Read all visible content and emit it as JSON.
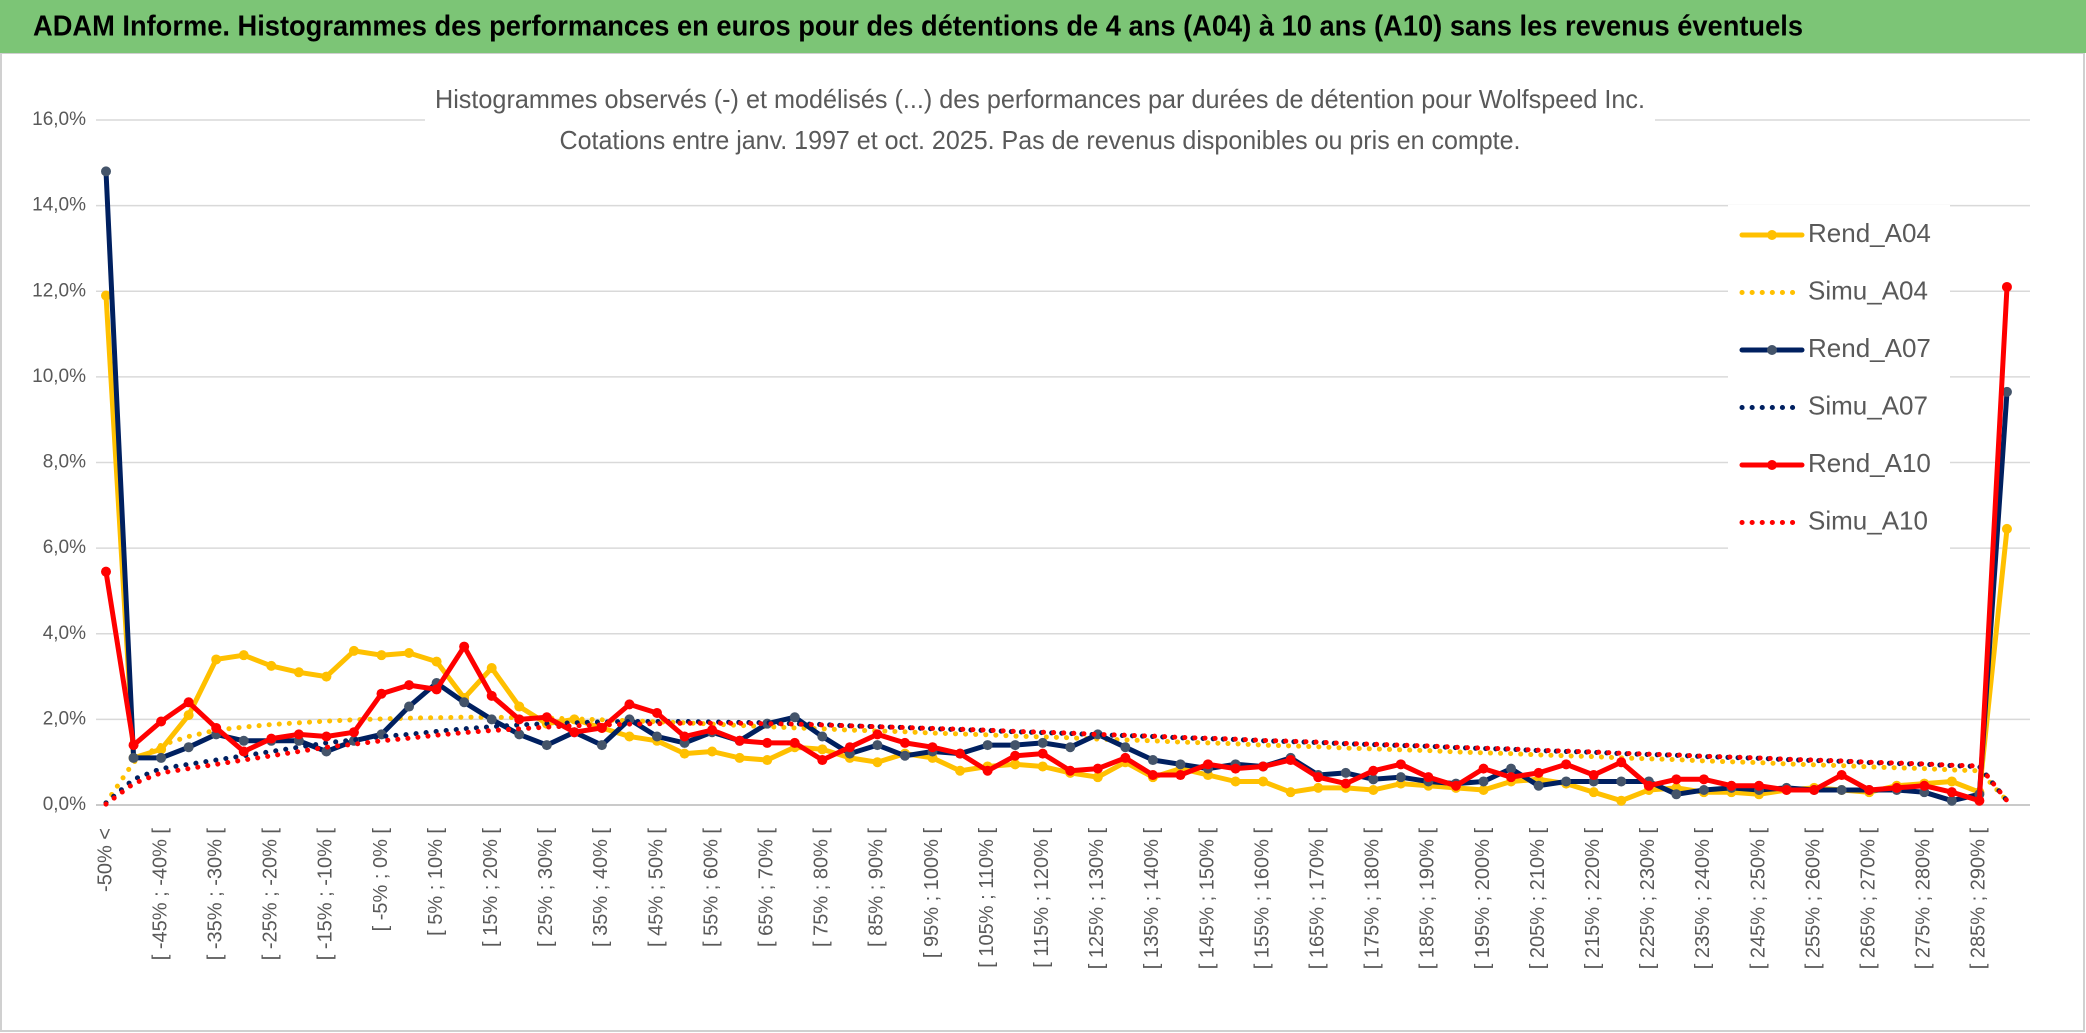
{
  "header": {
    "title": "ADAM Informe. Histogrammes des performances en euros pour des détentions de 4 ans (A04) à 10 ans (A10) sans les revenus éventuels"
  },
  "chart_data": {
    "type": "line",
    "title": "Histogrammes observés (-) et modélisés (...) des performances par durées de détention pour Wolfspeed Inc.",
    "subtitle": "Cotations entre janv. 1997 et oct. 2025. Pas de revenus disponibles ou pris en compte.",
    "categories": [
      "-50% <",
      null,
      "[ -45% ; -40% [",
      null,
      "[ -35% ; -30% [",
      null,
      "[ -25% ; -20% [",
      null,
      "[ -15% ; -10% [",
      null,
      "[ -5% ; 0% [",
      null,
      "[ 5% ; 10% [",
      null,
      "[ 15% ; 20% [",
      null,
      "[ 25% ; 30% [",
      null,
      "[ 35% ; 40% [",
      null,
      "[ 45% ; 50% [",
      null,
      "[ 55% ; 60% [",
      null,
      "[ 65% ; 70% [",
      null,
      "[ 75% ; 80% [",
      null,
      "[ 85% ; 90% [",
      null,
      "[ 95% ; 100% [",
      null,
      "[ 105% ; 110% [",
      null,
      "[ 115% ; 120% [",
      null,
      "[ 125% ; 130% [",
      null,
      "[ 135% ; 140% [",
      null,
      "[ 145% ; 150% [",
      null,
      "[ 155% ; 160% [",
      null,
      "[ 165% ; 170% [",
      null,
      "[ 175% ; 180% [",
      null,
      "[ 185% ; 190% [",
      null,
      "[ 195% ; 200% [",
      null,
      "[ 205% ; 210% [",
      null,
      "[ 215% ; 220% [",
      null,
      "[ 225% ; 230% [",
      null,
      "[ 235% ; 240% [",
      null,
      "[ 245% ; 250% [",
      null,
      "[ 255% ; 260% [",
      null,
      "[ 265% ; 270% [",
      null,
      "[ 275% ; 280% [",
      null,
      "[ 285% ; 290% [",
      null
    ],
    "series": [
      {
        "name": "Rend_A04",
        "color": "#ffc000",
        "marker_color": "#ffc000",
        "line_style": "solid",
        "values": [
          11.9,
          1.1,
          1.3,
          2.1,
          3.4,
          3.5,
          3.25,
          3.1,
          3.0,
          3.6,
          3.5,
          3.55,
          3.35,
          2.5,
          3.2,
          2.3,
          1.9,
          2.0,
          1.8,
          1.6,
          1.5,
          1.2,
          1.25,
          1.1,
          1.05,
          1.35,
          1.3,
          1.1,
          1.0,
          1.2,
          1.1,
          0.8,
          0.9,
          0.95,
          0.9,
          0.75,
          0.65,
          1.0,
          0.65,
          0.85,
          0.7,
          0.55,
          0.55,
          0.3,
          0.4,
          0.4,
          0.35,
          0.5,
          0.45,
          0.4,
          0.35,
          0.55,
          0.6,
          0.5,
          0.3,
          0.1,
          0.35,
          0.4,
          0.3,
          0.3,
          0.25,
          0.35,
          0.4,
          0.35,
          0.3,
          0.45,
          0.5,
          0.55,
          0.3,
          6.45
        ]
      },
      {
        "name": "Simu_A04",
        "color": "#ffc000",
        "line_style": "dotted",
        "values": [
          0.05,
          1.0,
          1.4,
          1.6,
          1.75,
          1.82,
          1.88,
          1.92,
          1.96,
          1.99,
          2.01,
          2.03,
          2.04,
          2.05,
          2.05,
          2.04,
          2.03,
          2.01,
          1.99,
          1.97,
          1.94,
          1.92,
          1.89,
          1.86,
          1.83,
          1.8,
          1.78,
          1.75,
          1.73,
          1.71,
          1.68,
          1.66,
          1.64,
          1.61,
          1.59,
          1.57,
          1.54,
          1.52,
          1.5,
          1.47,
          1.45,
          1.43,
          1.4,
          1.38,
          1.36,
          1.33,
          1.31,
          1.29,
          1.27,
          1.24,
          1.22,
          1.2,
          1.17,
          1.15,
          1.13,
          1.1,
          1.08,
          1.06,
          1.03,
          1.01,
          0.99,
          0.96,
          0.94,
          0.92,
          0.89,
          0.87,
          0.85,
          0.82,
          0.8,
          0.1
        ]
      },
      {
        "name": "Rend_A07",
        "color": "#002060",
        "marker_color": "#44546a",
        "line_style": "solid",
        "values": [
          14.8,
          1.1,
          1.1,
          1.35,
          1.65,
          1.5,
          1.5,
          1.5,
          1.25,
          1.5,
          1.65,
          2.3,
          2.85,
          2.4,
          2.0,
          1.65,
          1.4,
          1.7,
          1.4,
          2.0,
          1.6,
          1.45,
          1.7,
          1.5,
          1.9,
          2.05,
          1.6,
          1.2,
          1.4,
          1.15,
          1.25,
          1.2,
          1.4,
          1.4,
          1.45,
          1.35,
          1.65,
          1.35,
          1.05,
          0.95,
          0.85,
          0.95,
          0.9,
          1.1,
          0.7,
          0.75,
          0.6,
          0.65,
          0.55,
          0.5,
          0.55,
          0.85,
          0.45,
          0.55,
          0.55,
          0.55,
          0.55,
          0.25,
          0.35,
          0.4,
          0.35,
          0.4,
          0.35,
          0.35,
          0.35,
          0.35,
          0.3,
          0.1,
          0.25,
          9.65
        ]
      },
      {
        "name": "Simu_A07",
        "color": "#002060",
        "line_style": "dotted",
        "values": [
          0.05,
          0.6,
          0.85,
          0.95,
          1.05,
          1.15,
          1.25,
          1.35,
          1.45,
          1.52,
          1.6,
          1.65,
          1.72,
          1.78,
          1.83,
          1.87,
          1.9,
          1.92,
          1.94,
          1.95,
          1.95,
          1.95,
          1.94,
          1.93,
          1.92,
          1.9,
          1.88,
          1.85,
          1.83,
          1.81,
          1.78,
          1.76,
          1.74,
          1.71,
          1.69,
          1.67,
          1.64,
          1.62,
          1.6,
          1.57,
          1.55,
          1.53,
          1.5,
          1.48,
          1.46,
          1.43,
          1.41,
          1.39,
          1.37,
          1.34,
          1.32,
          1.3,
          1.27,
          1.25,
          1.23,
          1.2,
          1.18,
          1.16,
          1.13,
          1.11,
          1.09,
          1.06,
          1.04,
          1.02,
          0.99,
          0.97,
          0.95,
          0.92,
          0.9,
          0.1
        ]
      },
      {
        "name": "Rend_A10",
        "color": "#ff0000",
        "marker_color": "#ff0000",
        "line_style": "solid",
        "values": [
          5.45,
          1.4,
          1.95,
          2.4,
          1.8,
          1.25,
          1.55,
          1.65,
          1.6,
          1.7,
          2.6,
          2.8,
          2.7,
          3.7,
          2.55,
          2.0,
          2.05,
          1.7,
          1.8,
          2.35,
          2.15,
          1.6,
          1.75,
          1.5,
          1.45,
          1.45,
          1.05,
          1.35,
          1.65,
          1.45,
          1.35,
          1.2,
          0.8,
          1.15,
          1.2,
          0.8,
          0.85,
          1.1,
          0.7,
          0.7,
          0.95,
          0.85,
          0.9,
          1.05,
          0.65,
          0.5,
          0.8,
          0.95,
          0.65,
          0.45,
          0.85,
          0.65,
          0.75,
          0.95,
          0.7,
          1.0,
          0.45,
          0.6,
          0.6,
          0.45,
          0.45,
          0.35,
          0.35,
          0.7,
          0.35,
          0.4,
          0.45,
          0.3,
          0.1,
          12.1
        ]
      },
      {
        "name": "Simu_A10",
        "color": "#ff0000",
        "line_style": "dotted",
        "values": [
          0.02,
          0.5,
          0.75,
          0.85,
          0.95,
          1.05,
          1.15,
          1.25,
          1.35,
          1.42,
          1.5,
          1.56,
          1.63,
          1.69,
          1.74,
          1.78,
          1.82,
          1.85,
          1.87,
          1.89,
          1.9,
          1.91,
          1.91,
          1.91,
          1.9,
          1.89,
          1.87,
          1.85,
          1.83,
          1.81,
          1.79,
          1.77,
          1.75,
          1.72,
          1.7,
          1.68,
          1.65,
          1.63,
          1.61,
          1.58,
          1.56,
          1.54,
          1.51,
          1.49,
          1.47,
          1.44,
          1.42,
          1.4,
          1.38,
          1.35,
          1.33,
          1.31,
          1.28,
          1.26,
          1.24,
          1.21,
          1.19,
          1.17,
          1.14,
          1.12,
          1.1,
          1.07,
          1.05,
          1.03,
          1.0,
          0.98,
          0.96,
          0.93,
          0.91,
          0.1
        ]
      }
    ],
    "ylim": [
      0,
      16
    ],
    "yticks": [
      {
        "value": 0,
        "label": "0,0%"
      },
      {
        "value": 2,
        "label": "2,0%"
      },
      {
        "value": 4,
        "label": "4,0%"
      },
      {
        "value": 6,
        "label": "6,0%"
      },
      {
        "value": 8,
        "label": "8,0%"
      },
      {
        "value": 10,
        "label": "10,0%"
      },
      {
        "value": 12,
        "label": "12,0%"
      },
      {
        "value": 14,
        "label": "14,0%"
      },
      {
        "value": 16,
        "label": "16,0%"
      }
    ],
    "grid": true,
    "legend": "right"
  }
}
